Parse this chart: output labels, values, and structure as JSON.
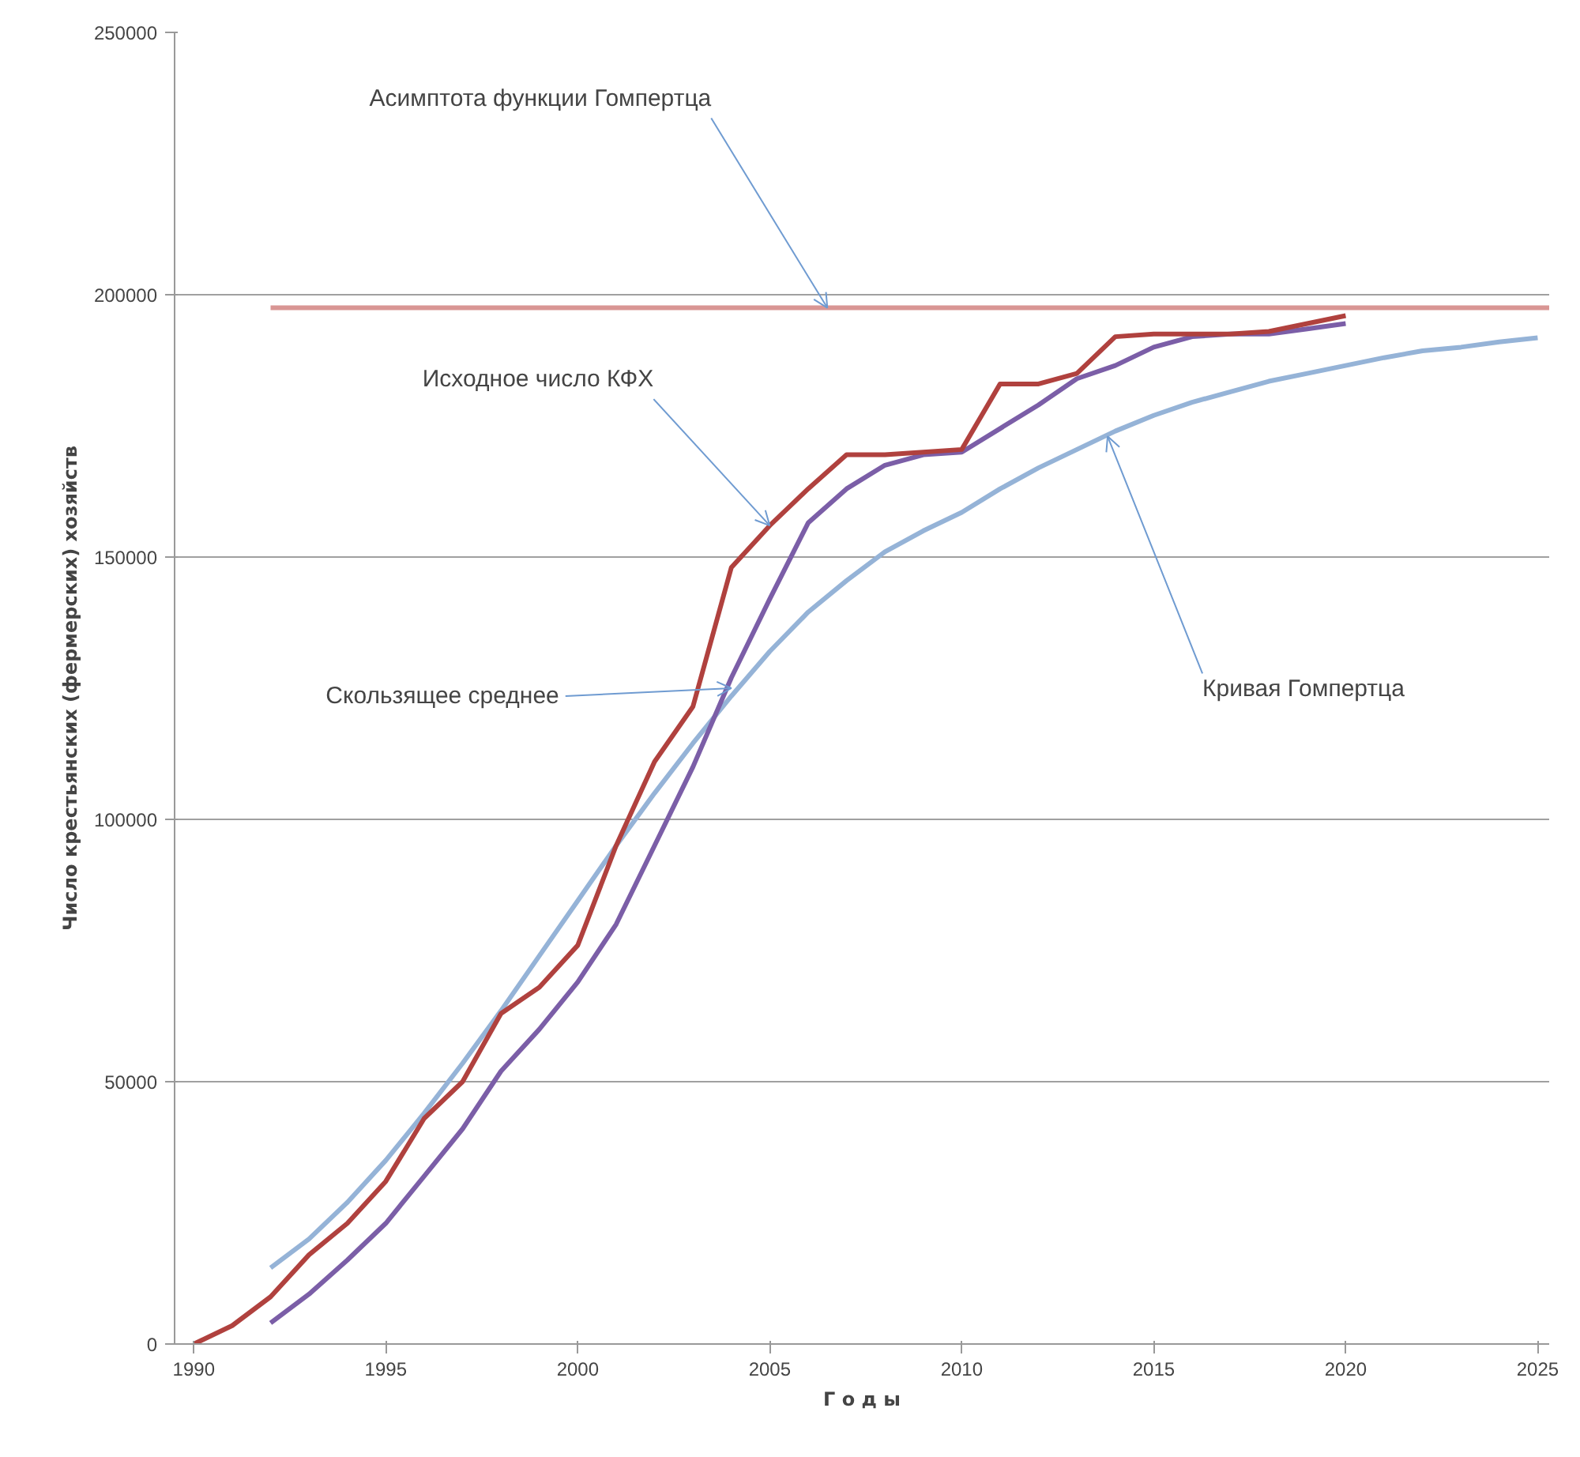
{
  "chart_data": {
    "type": "line",
    "xlabel": "Г о д ы",
    "ylabel": "Число крестьянских (фермерских) хозяйств",
    "xlim": [
      1989.5,
      2025.3
    ],
    "xticks": [
      1990,
      1995,
      2000,
      2005,
      2010,
      2015,
      2020,
      2025
    ],
    "ylim": [
      0,
      250000
    ],
    "yticks": [
      0,
      50000,
      100000,
      150000,
      200000,
      250000
    ],
    "grid": "y",
    "line_style": "solid",
    "marker": "none",
    "series": [
      {
        "color": "#d99694",
        "x": [
          1992,
          2025.3
        ],
        "values": [
          197500,
          197500
        ]
      },
      {
        "color": "#95b3d7",
        "x": [
          1992,
          1993,
          1994,
          1995,
          1996,
          1997,
          1998,
          1999,
          2000,
          2001,
          2002,
          2003,
          2004,
          2005,
          2006,
          2007,
          2008,
          2009,
          2010,
          2011,
          2012,
          2013,
          2014,
          2015,
          2016,
          2017,
          2018,
          2019,
          2020,
          2021,
          2022,
          2023,
          2024,
          2025
        ],
        "values": [
          14500,
          20000,
          27000,
          35000,
          44000,
          53500,
          63500,
          74000,
          84500,
          95000,
          105000,
          114500,
          123500,
          132000,
          139500,
          145500,
          151000,
          155000,
          158500,
          163000,
          167000,
          170500,
          174000,
          177000,
          179500,
          181500,
          183500,
          185000,
          186500,
          188000,
          189300,
          190000,
          191000,
          191800
        ]
      },
      {
        "color": "#7b5ea7",
        "x": [
          1992,
          1993,
          1994,
          1995,
          1996,
          1997,
          1998,
          1999,
          2000,
          2001,
          2002,
          2003,
          2004,
          2005,
          2006,
          2007,
          2008,
          2009,
          2010,
          2011,
          2012,
          2013,
          2014,
          2015,
          2016,
          2017,
          2018,
          2019,
          2020
        ],
        "values": [
          4000,
          9500,
          16000,
          23000,
          32000,
          41000,
          52000,
          60000,
          69000,
          80000,
          95000,
          110000,
          127000,
          142000,
          156500,
          163000,
          167500,
          169500,
          170000,
          174500,
          179000,
          184000,
          186500,
          190000,
          192000,
          192500,
          192500,
          193500,
          194500
        ]
      },
      {
        "color": "#b0413e",
        "x": [
          1990,
          1991,
          1992,
          1993,
          1994,
          1995,
          1996,
          1997,
          1998,
          1999,
          2000,
          2001,
          2002,
          2003,
          2004,
          2005,
          2006,
          2007,
          2008,
          2009,
          2010,
          2011,
          2012,
          2013,
          2014,
          2015,
          2016,
          2017,
          2018,
          2019,
          2020
        ],
        "values": [
          0,
          3500,
          9000,
          17000,
          23000,
          31000,
          43000,
          50000,
          63000,
          68000,
          76000,
          95000,
          111000,
          121500,
          148000,
          156000,
          163000,
          169500,
          169500,
          170000,
          170500,
          183000,
          183000,
          185000,
          192000,
          192500,
          192500,
          192500,
          193000,
          194500,
          196000
        ]
      }
    ],
    "annotations": [
      {
        "text": "Асимптота функции Гомпертца",
        "x": 2006.5,
        "y": 197500
      },
      {
        "text": "Исходное число КФХ",
        "x": 2005,
        "y": 156000
      },
      {
        "text": "Скользящее среднее",
        "x": 2004,
        "y": 125000
      },
      {
        "text": "Кривая Гомпертца",
        "x": 2013.8,
        "y": 173000
      }
    ]
  }
}
